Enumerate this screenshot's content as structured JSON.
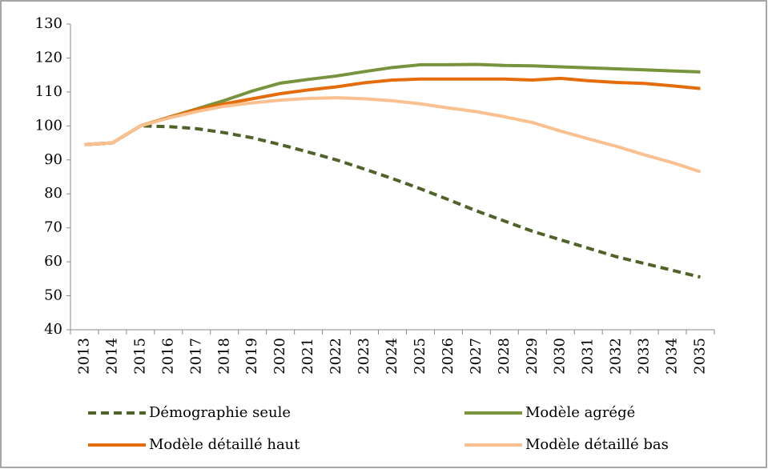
{
  "chart_data": {
    "type": "line",
    "categories": [
      "2013",
      "2014",
      "2015",
      "2016",
      "2017",
      "2018",
      "2019",
      "2020",
      "2021",
      "2022",
      "2023",
      "2024",
      "2025",
      "2026",
      "2027",
      "2028",
      "2029",
      "2030",
      "2031",
      "2032",
      "2033",
      "2034",
      "2035"
    ],
    "series": [
      {
        "name": "Démographie seule",
        "color": "#4f6228",
        "dash": true,
        "values": [
          94.5,
          95,
          100,
          99.8,
          99.2,
          98,
          96.5,
          94.5,
          92.3,
          90,
          87.3,
          84.5,
          81.5,
          78.3,
          75,
          72,
          69,
          66.5,
          64,
          61.5,
          59.5,
          57.5,
          55.5
        ]
      },
      {
        "name": "Modèle agrégé",
        "color": "#77933c",
        "dash": false,
        "values": [
          94.5,
          95,
          100,
          102.5,
          105,
          107.5,
          110.3,
          112.6,
          113.7,
          114.7,
          116,
          117.2,
          118,
          118,
          118.1,
          117.8,
          117.7,
          117.4,
          117.1,
          116.8,
          116.5,
          116.2,
          115.9
        ]
      },
      {
        "name": "Modèle détaillé haut",
        "color": "#e46c0a",
        "dash": false,
        "values": [
          94.5,
          95,
          100,
          102.5,
          104.8,
          106.5,
          108,
          109.5,
          110.6,
          111.5,
          112.7,
          113.5,
          113.8,
          113.8,
          113.8,
          113.8,
          113.5,
          114,
          113.3,
          112.8,
          112.5,
          111.8,
          111
        ]
      },
      {
        "name": "Modèle détaillé bas",
        "color": "#fac090",
        "dash": false,
        "values": [
          94.5,
          95,
          100,
          102.3,
          104.2,
          105.8,
          106.8,
          107.6,
          108.1,
          108.3,
          108,
          107.4,
          106.5,
          105.3,
          104.2,
          102.7,
          101,
          98.5,
          96.2,
          94,
          91.5,
          89.2,
          86.5
        ]
      }
    ],
    "ylim": [
      40,
      130
    ],
    "yticks": [
      40,
      50,
      60,
      70,
      80,
      90,
      100,
      110,
      120,
      130
    ],
    "grid": false
  }
}
